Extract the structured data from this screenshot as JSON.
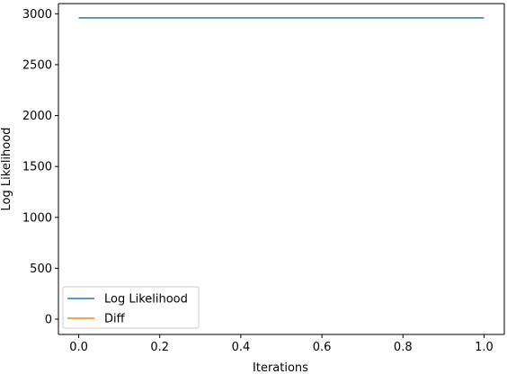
{
  "chart_data": {
    "type": "line",
    "title": "",
    "xlabel": "Iterations",
    "ylabel": "Log Likelihood",
    "xlim": [
      -0.05,
      1.05
    ],
    "ylim": [
      -150,
      3100
    ],
    "xticks": [
      0.0,
      0.2,
      0.4,
      0.6,
      0.8,
      1.0
    ],
    "xtick_labels": [
      "0.0",
      "0.2",
      "0.4",
      "0.6",
      "0.8",
      "1.0"
    ],
    "yticks": [
      0,
      500,
      1000,
      1500,
      2000,
      2500,
      3000
    ],
    "ytick_labels": [
      "0",
      "500",
      "1000",
      "1500",
      "2000",
      "2500",
      "3000"
    ],
    "grid": false,
    "legend_position": "lower-left",
    "series": [
      {
        "name": "Log Likelihood",
        "color": "#1f77b4",
        "x": [
          0,
          1
        ],
        "y": [
          2960,
          2960
        ]
      },
      {
        "name": "Diff",
        "color": "#ff7f0e",
        "x": [],
        "y": []
      }
    ]
  }
}
